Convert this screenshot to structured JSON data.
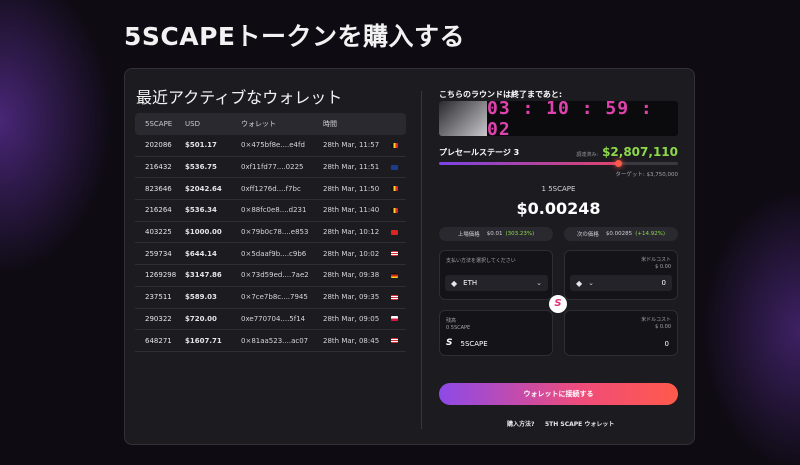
{
  "page_title": "5SCAPEトークンを購入する",
  "recent_wallets": {
    "title": "最近アクティブなウォレット",
    "columns": [
      "5SCAPE",
      "USD",
      "ウォレット",
      "時間"
    ],
    "rows": [
      {
        "tokens": "202086",
        "usd": "$501.17",
        "wallet": "0×475bf8e....e4fd",
        "time": "28th Mar, 11:57",
        "flag": "be"
      },
      {
        "tokens": "216432",
        "usd": "$536.75",
        "wallet": "0xf11fd77....0225",
        "time": "28th Mar, 11:51",
        "flag": "gb"
      },
      {
        "tokens": "823646",
        "usd": "$2042.64",
        "wallet": "0xff1276d....f7bc",
        "time": "28th Mar, 11:50",
        "flag": "be"
      },
      {
        "tokens": "216264",
        "usd": "$536.34",
        "wallet": "0×88fc0e8....d231",
        "time": "28th Mar, 11:40",
        "flag": "be"
      },
      {
        "tokens": "403225",
        "usd": "$1000.00",
        "wallet": "0×79b0c78....e853",
        "time": "28th Mar, 10:12",
        "flag": "vn"
      },
      {
        "tokens": "259734",
        "usd": "$644.14",
        "wallet": "0×5daaf9b....c9b6",
        "time": "28th Mar, 10:02",
        "flag": "us"
      },
      {
        "tokens": "1269298",
        "usd": "$3147.86",
        "wallet": "0×73d59ed....7ae2",
        "time": "28th Mar, 09:38",
        "flag": "de"
      },
      {
        "tokens": "237511",
        "usd": "$589.03",
        "wallet": "0×7ce7b8c....7945",
        "time": "28th Mar, 09:35",
        "flag": "us"
      },
      {
        "tokens": "290322",
        "usd": "$720.00",
        "wallet": "0xe770704....5f14",
        "time": "28th Mar, 09:05",
        "flag": "pl"
      },
      {
        "tokens": "648271",
        "usd": "$1607.71",
        "wallet": "0×81aa523....ac07",
        "time": "28th Mar, 08:45",
        "flag": "us"
      }
    ]
  },
  "presale": {
    "round_heading": "こちらのラウンドは終了まであと:",
    "countdown": "03 : 10 : 59 : 02",
    "stage_label": "プレセールステージ 3",
    "raised_label": "調達済み:",
    "raised_value": "$2,807,110",
    "progress_fraction": 0.75,
    "target_text": "ターゲット: $3,750,000",
    "token_label": "1 5SCAPE",
    "token_price": "$0.00248",
    "listing_label": "上場価格",
    "listing_price": "$0.01",
    "listing_pct": "(303.23%)",
    "next_label": "次の価格",
    "next_price": "$0.00285",
    "next_pct": "(+14.92%)"
  },
  "pay_form": {
    "pay_method_label": "支払い方法を選択してください",
    "pay_currency": "ETH",
    "usd_cost_label": "米ドルコスト",
    "usd_cost_value": "$ 0.00",
    "pay_amount": "0",
    "balance_label": "残高",
    "balance_value": "0 5SCAPE",
    "receive_token": "5SCAPE",
    "usd_cost_label_2": "米ドルコスト",
    "usd_cost_value_2": "$ 0.00",
    "receive_amount": "0",
    "token_logo": "S"
  },
  "connect_button": "ウォレットに接続する",
  "footer": {
    "how_to_buy": "購入方法?",
    "wallet_link": "5TH SCAPE ウォレット"
  },
  "colors": {
    "accent_pink": "#e042ad",
    "raised_green": "#8dd94a",
    "gradient_start": "#8d4ae8",
    "gradient_end": "#ff5a4a"
  },
  "icons": {
    "eth": "eth-icon",
    "chevron": "chevron-down-icon",
    "swap": "5scape-logo-icon"
  }
}
